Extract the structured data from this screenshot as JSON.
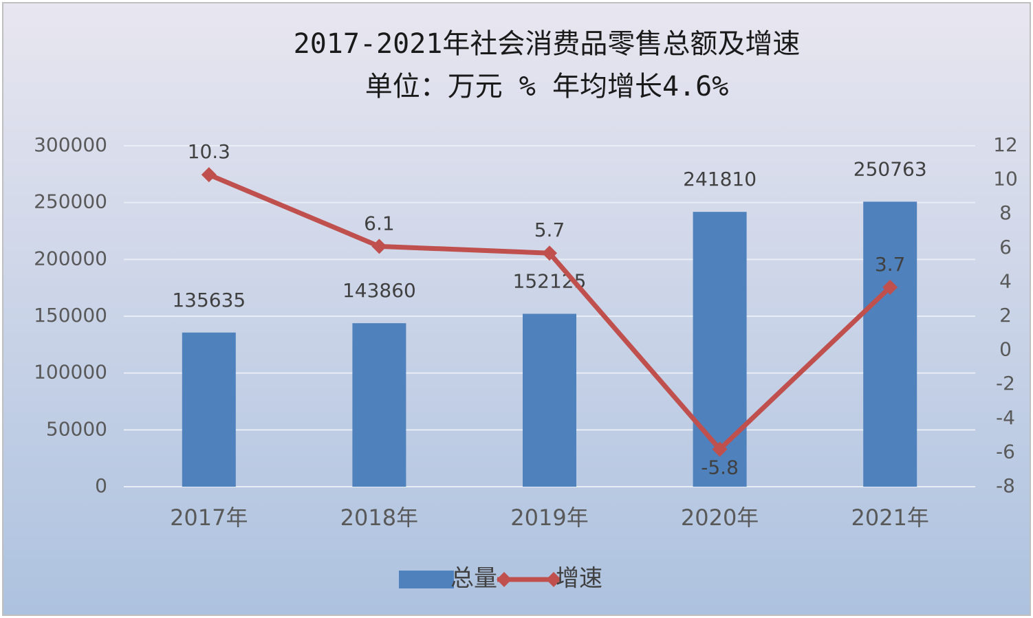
{
  "chart_data": {
    "type": "bar-line",
    "title": "2017-2021年社会消费品零售总额及增速",
    "subtitle": "单位：万元 %  年均增长4.6%",
    "categories": [
      "2017年",
      "2018年",
      "2019年",
      "2020年",
      "2021年"
    ],
    "series": [
      {
        "name": "总量",
        "type": "bar",
        "color": "#4f81bd",
        "values": [
          135635,
          143860,
          152125,
          241810,
          250763
        ]
      },
      {
        "name": "增速",
        "type": "line",
        "axis": "y2",
        "color": "#c0504d",
        "values": [
          10.3,
          6.1,
          5.7,
          -5.8,
          3.7
        ]
      }
    ],
    "ylim": [
      0,
      300000
    ],
    "yticks": [
      0,
      50000,
      100000,
      150000,
      200000,
      250000,
      300000
    ],
    "y2lim": [
      -8,
      12
    ],
    "y2ticks": [
      -8,
      -6,
      -4,
      -2,
      0,
      2,
      4,
      6,
      8,
      10,
      12
    ],
    "grid": true,
    "legend": "bottom"
  }
}
